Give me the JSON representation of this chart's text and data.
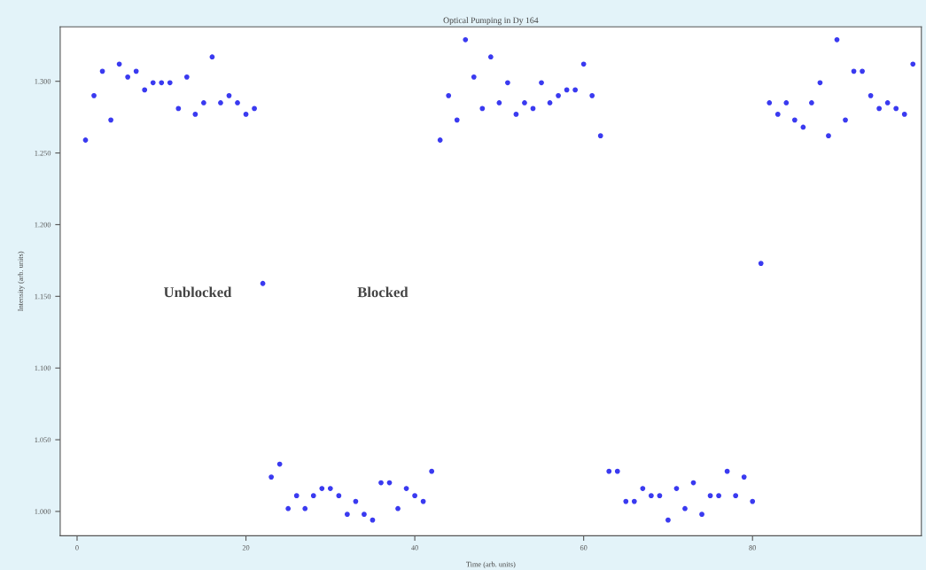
{
  "chart_data": {
    "type": "scatter",
    "title": "Optical Pumping in Dy 164",
    "xlabel": "Time (arb. units)",
    "ylabel": "Intensity (arb. units)",
    "annotations": [
      "Unblocked",
      "Blocked"
    ],
    "x": [
      1,
      2,
      3,
      4,
      5,
      6,
      7,
      8,
      9,
      10,
      11,
      12,
      13,
      14,
      15,
      16,
      17,
      18,
      19,
      20,
      21,
      22,
      23,
      24,
      25,
      26,
      27,
      28,
      29,
      30,
      31,
      32,
      33,
      34,
      35,
      36,
      37,
      38,
      39,
      40,
      41,
      42,
      43,
      44,
      45,
      46,
      47,
      48,
      49,
      50,
      51,
      52,
      53,
      54,
      55,
      56,
      57,
      58,
      59,
      60,
      61,
      62,
      63,
      64,
      65,
      66,
      67,
      68,
      69,
      70,
      71,
      72,
      73,
      74,
      75,
      76,
      77,
      78,
      79,
      80,
      81,
      82,
      83,
      84,
      85,
      86,
      87,
      88,
      89,
      90,
      91,
      92,
      93,
      94,
      95,
      96,
      97,
      98,
      99
    ],
    "series": [
      {
        "color": "#3a3af0",
        "values": [
          1.259,
          1.29,
          1.307,
          1.273,
          1.312,
          1.303,
          1.307,
          1.294,
          1.299,
          1.299,
          1.299,
          1.281,
          1.303,
          1.277,
          1.285,
          1.317,
          1.285,
          1.29,
          1.285,
          1.277,
          1.281,
          1.159,
          1.024,
          1.033,
          1.002,
          1.011,
          1.002,
          1.011,
          1.016,
          1.016,
          1.011,
          0.998,
          1.007,
          0.998,
          0.994,
          1.02,
          1.02,
          1.002,
          1.016,
          1.011,
          1.007,
          1.028,
          1.259,
          1.29,
          1.273,
          1.329,
          1.303,
          1.281,
          1.317,
          1.285,
          1.299,
          1.277,
          1.285,
          1.281,
          1.299,
          1.285,
          1.29,
          1.294,
          1.294,
          1.312,
          1.29,
          1.262,
          1.028,
          1.028,
          1.007,
          1.007,
          1.016,
          1.011,
          1.011,
          0.994,
          1.016,
          1.002,
          1.02,
          0.998,
          1.011,
          1.011,
          1.028,
          1.011,
          1.024,
          1.007,
          1.173,
          1.285,
          1.277,
          1.285,
          1.273,
          1.268,
          1.285,
          1.299,
          1.262,
          1.329,
          1.273,
          1.307,
          1.307,
          1.29,
          1.281,
          1.285,
          1.281,
          1.277,
          1.312
        ]
      }
    ],
    "marker": "circle",
    "xlim": [
      -2,
      100
    ],
    "ylim": [
      0.983,
      1.338
    ],
    "xticks": [
      0,
      20,
      40,
      60,
      80
    ],
    "yticks": [
      {
        "value": 1.3,
        "label": "1.300"
      },
      {
        "value": 1.25,
        "label": "1.250"
      },
      {
        "value": 1.2,
        "label": "1.200"
      },
      {
        "value": 1.15,
        "label": "1.150"
      },
      {
        "value": 1.1,
        "label": "1.100"
      },
      {
        "value": 1.05,
        "label": "1.050"
      },
      {
        "value": 1.0,
        "label": "1.000"
      }
    ],
    "grid": false,
    "legend": false
  }
}
